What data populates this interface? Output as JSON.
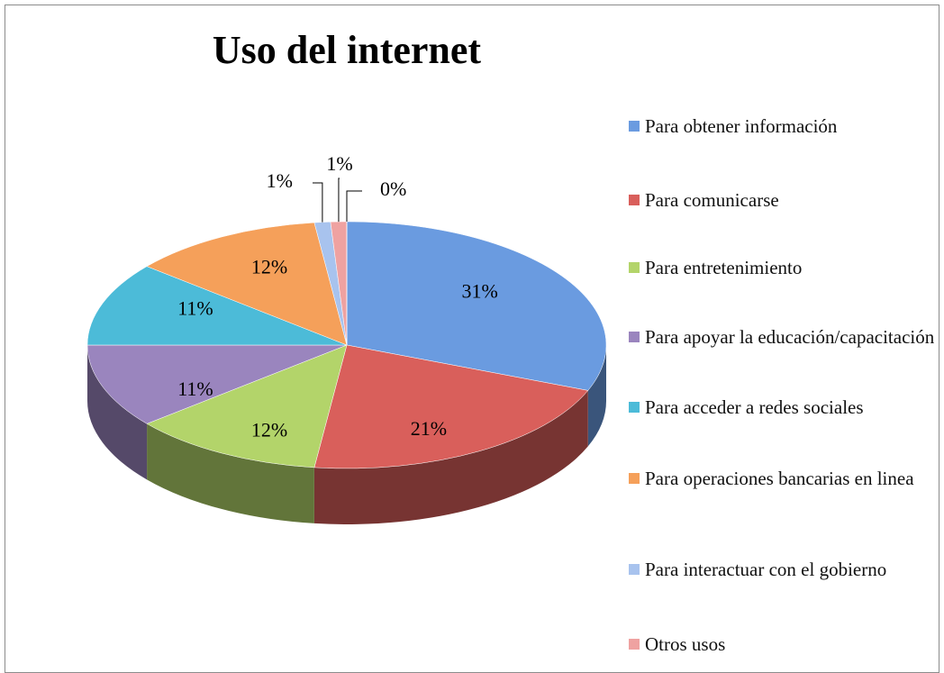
{
  "chart_data": {
    "type": "pie",
    "title": "Uso del internet",
    "categories": [
      "Para obtener información",
      "Para comunicarse",
      "Para entretenimiento",
      "Para apoyar la educación/capacitación",
      "Para acceder a redes sociales",
      "Para operaciones bancarias en linea",
      "Para interactuar con el gobierno",
      "Otros usos",
      null
    ],
    "values": [
      31,
      21,
      12,
      11,
      11,
      12,
      1,
      1,
      0
    ],
    "value_labels": [
      "31%",
      "21%",
      "12%",
      "11%",
      "11%",
      "12%",
      "1%",
      "1%",
      "0%"
    ],
    "colors": [
      "#6a9be0",
      "#d95f5b",
      "#b3d46a",
      "#9a85be",
      "#4cbbd8",
      "#f5a05a",
      "#a8c3ee",
      "#efa2a1",
      "#c8e29e"
    ],
    "legend": "right"
  }
}
